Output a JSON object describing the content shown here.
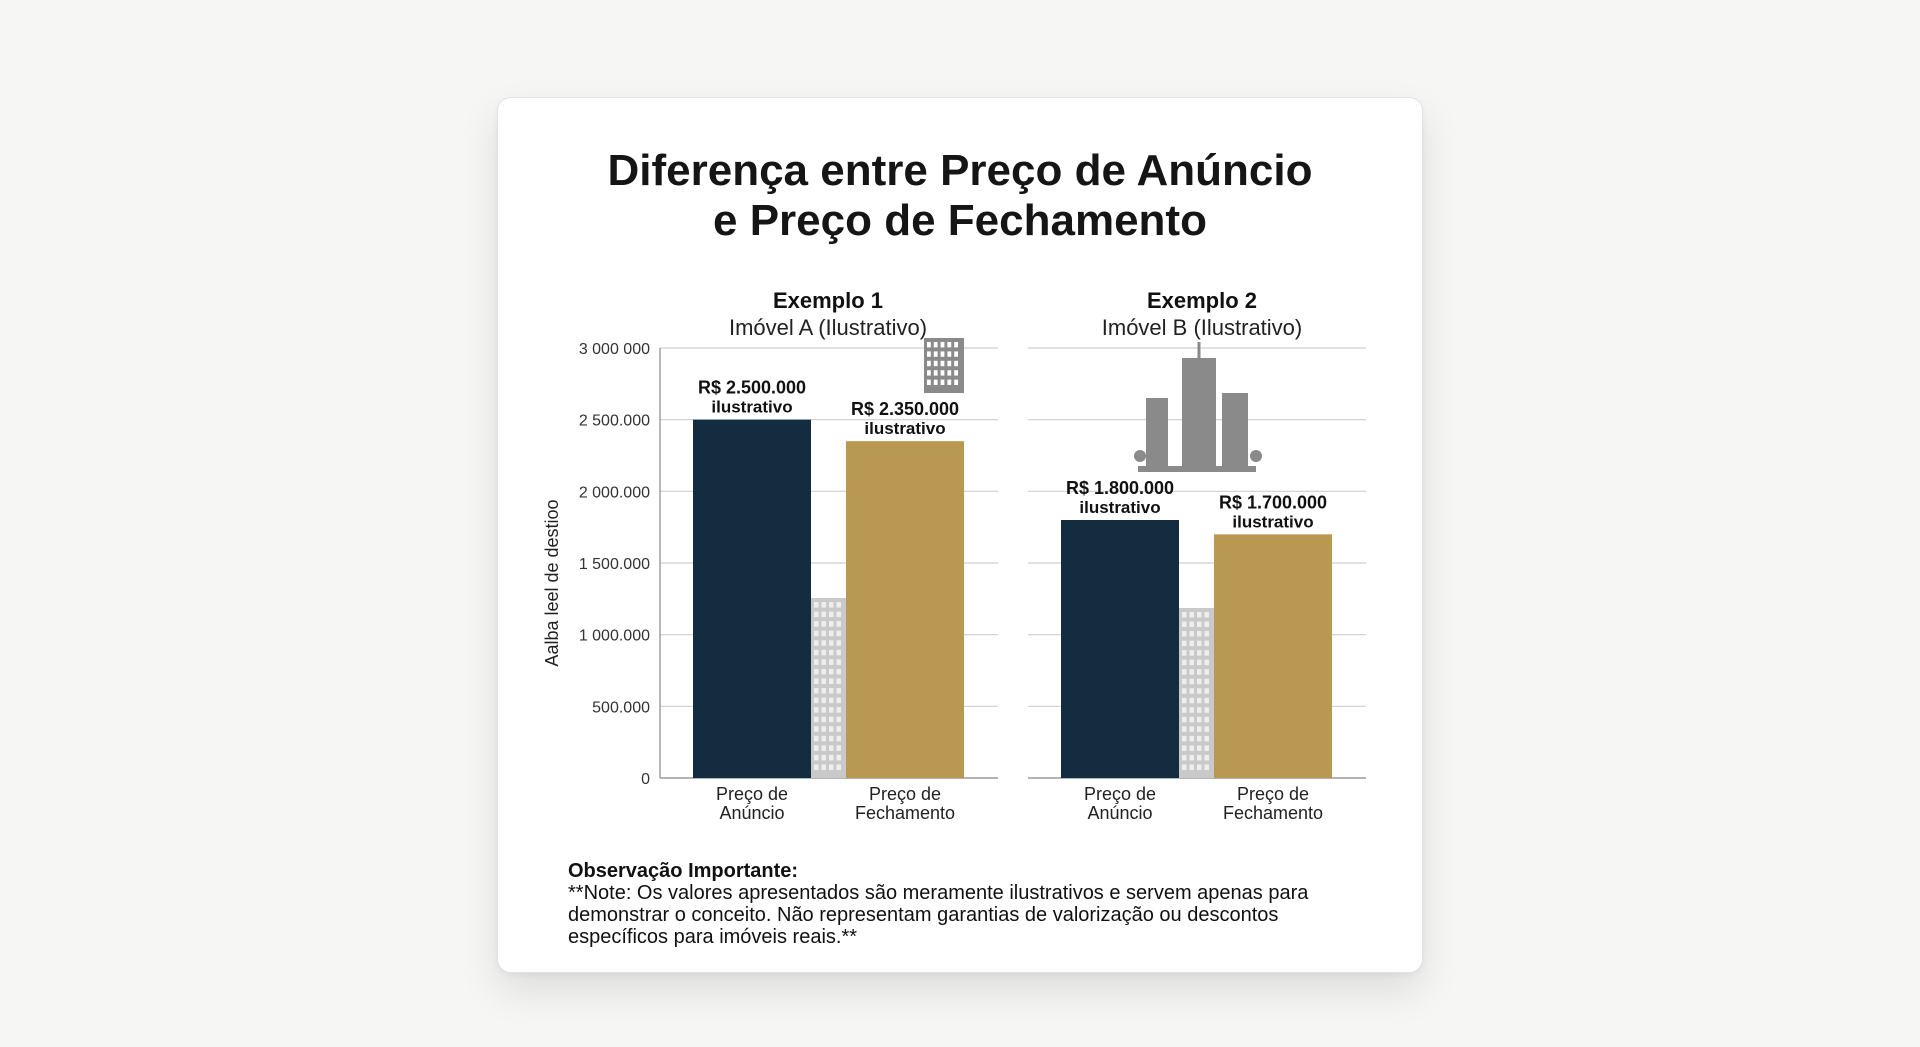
{
  "title_lines": [
    "Diferença entre Preço de Anúncio",
    "e Preço de Fechamento"
  ],
  "note": {
    "title": "Observação Importante:",
    "body": "**Note: Os valores apresentados são meramente ilustrativos e servem apenas para demonstrar o conceito. Não representam garantias de valorização ou descontos específicos para imóveis reais.**"
  },
  "colors": {
    "anuncio": "#142c40",
    "fechamento": "#b99952",
    "grid": "#cfcfcf",
    "building": "#8a8a8a"
  },
  "icons": [
    "building-icon",
    "city-buildings-icon"
  ],
  "chart_data": [
    {
      "type": "bar",
      "title": "Exemplo 1",
      "subtitle": "Imóvel A (Ilustrativo)",
      "ylabel": "Aalba leel de destioo",
      "ylim": [
        0,
        3000000
      ],
      "yticks": [
        0,
        500000,
        1000000,
        1500000,
        2000000,
        2500000,
        3000000
      ],
      "ytick_labels": [
        "0",
        "500.000",
        "1 000.000",
        "1 500.000",
        "2 000.000",
        "2 500.000",
        "3 000 000"
      ],
      "categories": [
        "Preço de Anúncio",
        "Preço de Fechamento"
      ],
      "category_lines": [
        [
          "Preço de",
          "Anúncio"
        ],
        [
          "Preço de",
          "Fechamento"
        ]
      ],
      "values": [
        2500000,
        2350000
      ],
      "data_labels": [
        [
          "R$ 2.500.000",
          "ilustrativo"
        ],
        [
          "R$ 2.350.000",
          "ilustrativo"
        ]
      ],
      "grid": true
    },
    {
      "type": "bar",
      "title": "Exemplo 2",
      "subtitle": "Imóvel B (Ilustrativo)",
      "ylim": [
        0,
        3000000
      ],
      "yticks": [
        0,
        500000,
        1000000,
        1500000,
        2000000,
        2500000,
        3000000
      ],
      "categories": [
        "Preço de Anúncio",
        "Preço de Fechamento"
      ],
      "category_lines": [
        [
          "Preço de",
          "Anúncio"
        ],
        [
          "Preço de",
          "Fechamento"
        ]
      ],
      "values": [
        1800000,
        1700000
      ],
      "data_labels": [
        [
          "R$ 1.800.000",
          "ilustrativo"
        ],
        [
          "R$ 1.700.000",
          "ilustrativo"
        ]
      ],
      "grid": true
    }
  ]
}
